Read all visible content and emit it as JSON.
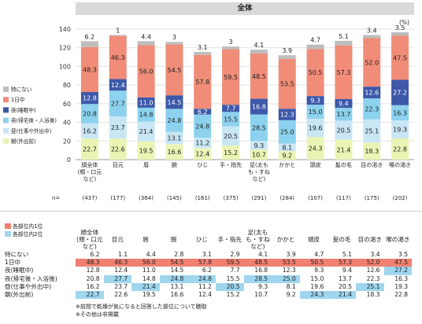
{
  "title": "全体",
  "unit": "(%)",
  "n_label": "n=",
  "table_legend": [
    {
      "label": "各部位内1位",
      "color": "#f08070"
    },
    {
      "label": "各部位内2位",
      "color": "#9fd6ee"
    }
  ],
  "notes": [
    "※前間で乾燥が気になると回答した部位について聴取",
    "※その他は非掲載"
  ],
  "chart_data": {
    "type": "bar",
    "stacked": true,
    "ylim": [
      0,
      140
    ],
    "yticks": [
      0,
      20,
      40,
      60,
      80,
      100,
      120,
      140
    ],
    "grid": true,
    "legend_position": "left",
    "categories": [
      "顔全体\n(頬・口元\nなど)",
      "目元",
      "唇",
      "腕",
      "ひじ",
      "手・指先",
      "足(太も\nも・すね\nなど)",
      "かかと",
      "頭皮",
      "髪の毛",
      "目の渇き",
      "喉の渇き"
    ],
    "n": [
      "(437)",
      "(177)",
      "(364)",
      "(145)",
      "(161)",
      "(375)",
      "(291)",
      "(284)",
      "(107)",
      "(117)",
      "(175)",
      "(202)"
    ],
    "series": [
      {
        "name": "朝(外出前)",
        "color": "#eaf5b5",
        "values": [
          22.7,
          22.6,
          19.5,
          16.6,
          12.4,
          15.2,
          10.7,
          9.2,
          24.3,
          21.4,
          18.3,
          22.8
        ]
      },
      {
        "name": "昼(仕事や外出中)",
        "color": "#c9e6f5",
        "values": [
          16.2,
          23.7,
          21.4,
          13.1,
          11.2,
          20.5,
          9.3,
          8.1,
          19.6,
          20.5,
          25.1,
          19.3
        ]
      },
      {
        "name": "夜(帰宅後・入浴後)",
        "color": "#8cd2ee",
        "values": [
          20.8,
          27.7,
          14.8,
          24.8,
          24.8,
          15.5,
          28.5,
          25.0,
          15.0,
          13.7,
          22.3,
          16.3
        ]
      },
      {
        "name": "夜(睡眠中)",
        "color": "#3d58a8",
        "values": [
          12.8,
          12.4,
          11.0,
          14.5,
          6.2,
          7.7,
          16.8,
          12.3,
          9.3,
          9.4,
          12.6,
          27.2
        ]
      },
      {
        "name": "1日中",
        "color": "#f08c78",
        "values": [
          48.3,
          46.3,
          56.0,
          54.5,
          57.8,
          59.5,
          48.5,
          53.5,
          50.5,
          57.3,
          52.0,
          47.5
        ]
      },
      {
        "name": "特にない",
        "color": "#bdbdbd",
        "values": [
          6.2,
          1.1,
          4.4,
          2.8,
          3.1,
          2.9,
          4.1,
          3.9,
          4.7,
          5.1,
          3.4,
          3.5
        ]
      }
    ],
    "bar_labels": [
      [
        "22.7",
        "22.6",
        "19.5",
        "16.6",
        "12.4",
        "15.2",
        "10.7",
        "9.2",
        "24.3",
        "21.4",
        "18.3",
        "22.8"
      ],
      [
        "16.2",
        "23.7",
        "21.4",
        "13.1",
        "11.2",
        "20.5",
        "9.3",
        "8.1",
        "19.6",
        "20.5",
        "25.1",
        "19.3"
      ],
      [
        "20.8",
        "27.7",
        "14.8",
        "24.8",
        "24.8",
        "15.5",
        "28.5",
        "25.0",
        "15.0",
        "13.7",
        "22.3",
        "16.3"
      ],
      [
        "12.8",
        "12.4",
        "11.0",
        "14.5",
        "6.2",
        "7.7",
        "16.8",
        "12.3",
        "9.3",
        "9.4",
        "12.6",
        "27.2"
      ],
      [
        "48.3",
        "46.3",
        "56.0",
        "54.5",
        "57.8",
        "59.5",
        "48.5",
        "53.5",
        "50.5",
        "57.3",
        "52.0",
        "47.5"
      ],
      [
        "6.2",
        "1",
        "4.4",
        "3",
        "3.1",
        "3",
        "4.1",
        "3.9",
        "4.7",
        "5.1",
        "3.4",
        "3.5"
      ]
    ]
  },
  "table": {
    "headers": [
      "顔全体\n(頬・口元\nなど)",
      "目元",
      "唇",
      "腕",
      "ひじ",
      "手・指先",
      "足(太も\nも・すね\nなど)",
      "かかと",
      "頭皮",
      "髪の毛",
      "目の渇き",
      "喉の渇き"
    ],
    "rows": [
      {
        "label": "特にない",
        "values": [
          "6.2",
          "1.1",
          "4.4",
          "2.8",
          "3.1",
          "2.9",
          "4.1",
          "3.9",
          "4.7",
          "5.1",
          "3.4",
          "3.5"
        ],
        "hl": [
          "",
          "",
          "",
          "",
          "",
          "",
          "",
          "",
          "",
          "",
          "",
          ""
        ]
      },
      {
        "label": "1日中",
        "values": [
          "48.3",
          "46.3",
          "56.0",
          "54.5",
          "57.8",
          "59.5",
          "48.5",
          "53.5",
          "50.5",
          "57.3",
          "52.0",
          "47.5"
        ],
        "hl": [
          "r",
          "r",
          "r",
          "r",
          "r",
          "r",
          "r",
          "r",
          "r",
          "r",
          "r",
          "r"
        ]
      },
      {
        "label": "夜(睡眠中)",
        "values": [
          "12.8",
          "12.4",
          "11.0",
          "14.5",
          "6.2",
          "7.7",
          "16.8",
          "12.3",
          "9.3",
          "9.4",
          "12.6",
          "27.2"
        ],
        "hl": [
          "",
          "",
          "",
          "",
          "",
          "",
          "",
          "",
          "",
          "",
          "",
          "b"
        ]
      },
      {
        "label": "夜(帰宅後・入浴後)",
        "values": [
          "20.8",
          "27.7",
          "14.8",
          "24.8",
          "24.8",
          "15.5",
          "28.5",
          "25.0",
          "15.0",
          "13.7",
          "22.3",
          "16.3"
        ],
        "hl": [
          "",
          "b",
          "",
          "b",
          "b",
          "",
          "b",
          "b",
          "",
          "",
          "",
          ""
        ]
      },
      {
        "label": "昼(仕事や外出中)",
        "values": [
          "16.2",
          "23.7",
          "21.4",
          "13.1",
          "11.2",
          "20.5",
          "9.3",
          "8.1",
          "19.6",
          "20.5",
          "25.1",
          "19.3"
        ],
        "hl": [
          "",
          "",
          "b",
          "",
          "",
          "b",
          "",
          "",
          "",
          "",
          "b",
          ""
        ]
      },
      {
        "label": "朝(外出前)",
        "values": [
          "22.7",
          "22.6",
          "19.5",
          "16.6",
          "12.4",
          "15.2",
          "10.7",
          "9.2",
          "24.3",
          "21.4",
          "18.3",
          "22.8"
        ],
        "hl": [
          "b",
          "",
          "",
          "",
          "",
          "",
          "",
          "",
          "b",
          "b",
          "",
          ""
        ]
      }
    ]
  }
}
